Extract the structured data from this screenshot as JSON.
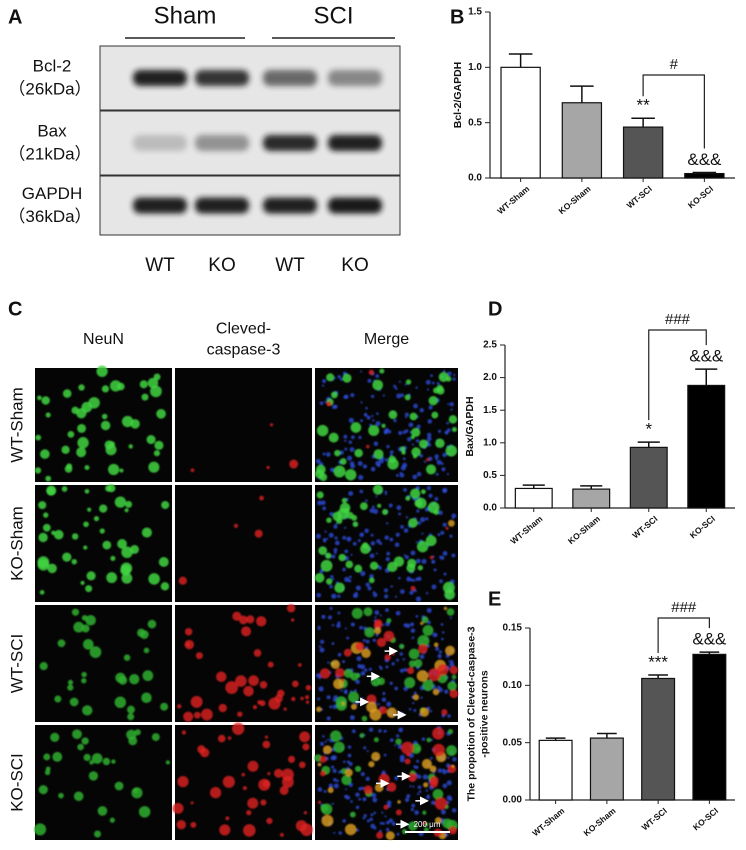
{
  "panel_labels": [
    "A",
    "B",
    "C",
    "D",
    "E"
  ],
  "blot": {
    "groups": [
      "Sham",
      "SCI"
    ],
    "rows": [
      {
        "protein": "Bcl-2",
        "weight": "（26kDa）"
      },
      {
        "protein": "Bax",
        "weight": "（21kDa）"
      },
      {
        "protein": "GAPDH",
        "weight": "（36kDa）"
      }
    ],
    "lanes": [
      "WT",
      "KO",
      "WT",
      "KO"
    ]
  },
  "micrograph": {
    "columns": [
      [
        "NeuN"
      ],
      [
        "Cleved-",
        "caspase-3"
      ],
      [
        "Merge"
      ]
    ],
    "rows": [
      "WT-Sham",
      "KO-Sham",
      "WT-SCI",
      "KO-SCI"
    ],
    "scale_bar": "200 μm"
  },
  "chart_data": [
    {
      "type": "bar",
      "ylabel": [
        "Bcl-2/GAPDH"
      ],
      "categories": [
        "WT-Sham",
        "KO-Sham",
        "WT-SCI",
        "KO-SCI"
      ],
      "values": [
        1.0,
        0.68,
        0.46,
        0.04
      ],
      "errors": [
        0.12,
        0.15,
        0.08,
        0.01
      ],
      "colors": [
        "#ffffff",
        "#a6a6a6",
        "#555555",
        "#000000"
      ],
      "ylim": [
        0,
        1.5
      ],
      "yticks": [
        {
          "value": 0,
          "label": "0.0"
        },
        0.5,
        {
          "value": 1,
          "label": "1.0"
        },
        1.5
      ],
      "annotations": [
        "**",
        "&&&",
        "#"
      ]
    },
    {
      "type": "bar",
      "ylabel": [
        "Bax/GAPDH"
      ],
      "categories": [
        "WT-Sham",
        "KO-Sham",
        "WT-SCI",
        "KO-SCI"
      ],
      "values": [
        0.3,
        0.29,
        0.93,
        1.88
      ],
      "errors": [
        0.05,
        0.05,
        0.08,
        0.25
      ],
      "colors": [
        "#ffffff",
        "#a6a6a6",
        "#555555",
        "#000000"
      ],
      "ylim": [
        0,
        2.5
      ],
      "yticks": [
        {
          "value": 0,
          "label": "0.0"
        },
        0.5,
        {
          "value": 1,
          "label": "1.0"
        },
        1.5,
        {
          "value": 2,
          "label": "2.0"
        },
        2.5
      ],
      "annotations": [
        "*",
        "&&&",
        "###"
      ]
    },
    {
      "type": "bar",
      "ylabel": [
        "The propotion of Cleved-caspase-3",
        "-positive neurons"
      ],
      "categories": [
        "WT-Sham",
        "KO-Sham",
        "WT-SCI",
        "KO-SCI"
      ],
      "values": [
        0.052,
        0.054,
        0.106,
        0.127
      ],
      "errors": [
        0.002,
        0.004,
        0.003,
        0.002
      ],
      "colors": [
        "#ffffff",
        "#a6a6a6",
        "#555555",
        "#000000"
      ],
      "ylim": [
        0,
        0.15
      ],
      "yticks": [
        {
          "value": 0,
          "label": "0.00"
        },
        0.05,
        {
          "value": 0.1,
          "label": "0.10"
        },
        0.15
      ],
      "annotations": [
        "***",
        "&&&",
        "###"
      ]
    }
  ]
}
